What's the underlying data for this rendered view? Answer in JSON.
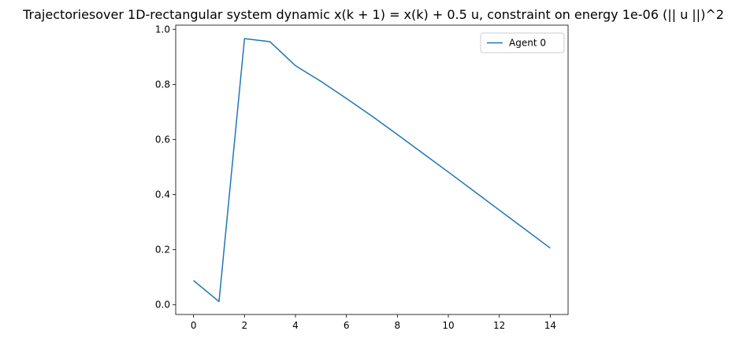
{
  "chart_data": {
    "type": "line",
    "title": "Trajectoriesover 1D-rectangular system dynamic x(k + 1) = x(k) + 0.5 u, constraint on energy 1e-06 (|| u ||)^2",
    "xlabel": "",
    "ylabel": "",
    "xlim": [
      -0.7,
      14.7
    ],
    "ylim": [
      -0.035,
      1.015
    ],
    "xticks": [
      0,
      2,
      4,
      6,
      8,
      10,
      12,
      14
    ],
    "yticks": [
      0.0,
      0.2,
      0.4,
      0.6,
      0.8,
      1.0
    ],
    "xtick_labels": [
      "0",
      "2",
      "4",
      "6",
      "8",
      "10",
      "12",
      "14"
    ],
    "ytick_labels": [
      "0.0",
      "0.2",
      "0.4",
      "0.6",
      "0.8",
      "1.0"
    ],
    "grid": false,
    "legend_position": "top-right",
    "series": [
      {
        "name": "Agent 0",
        "color": "#1f77b4",
        "x": [
          0,
          1,
          2,
          3,
          4,
          5,
          6,
          7,
          8,
          9,
          10,
          11,
          12,
          13,
          14
        ],
        "y": [
          0.088,
          0.012,
          0.966,
          0.955,
          0.868,
          0.811,
          0.749,
          0.685,
          0.618,
          0.55,
          0.482,
          0.413,
          0.344,
          0.275,
          0.206
        ]
      }
    ]
  }
}
